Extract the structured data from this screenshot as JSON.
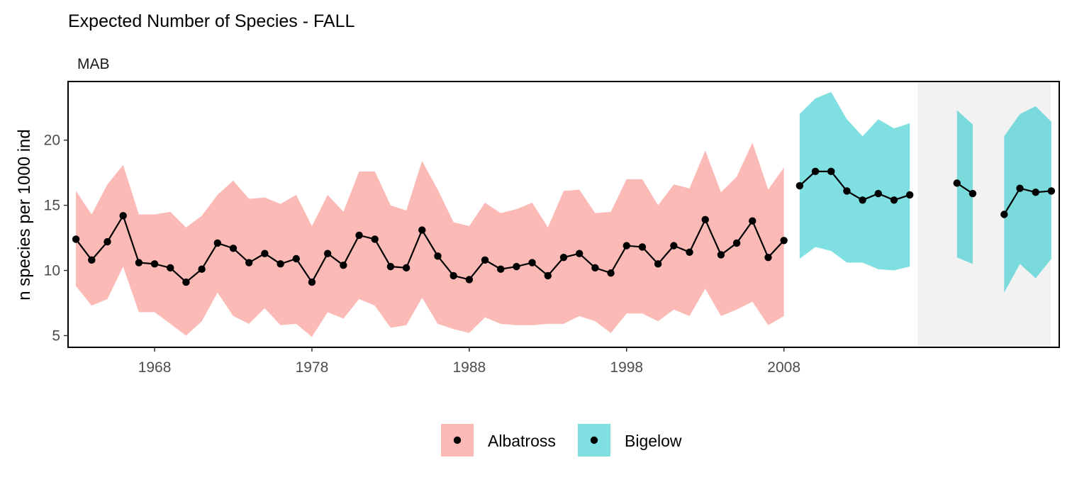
{
  "chart_data": {
    "type": "line",
    "title": "Expected Number of Species - FALL",
    "subtitle": "MAB",
    "xlabel": "",
    "ylabel": "n species per 1000 ind",
    "xlim": [
      1962.5,
      2025.5
    ],
    "ylim": [
      4.1,
      24.5
    ],
    "x_ticks": [
      1968,
      1978,
      1988,
      1998,
      2008
    ],
    "y_ticks": [
      5,
      10,
      15,
      20
    ],
    "grid": false,
    "legend_position": "bottom",
    "shaded_period": [
      2016.5,
      2025.5
    ],
    "shaded_period_color": "#f2f2f2",
    "colors": {
      "Albatross": "#f8766d",
      "Bigelow": "#00bfc4",
      "line": "#000000"
    },
    "series": [
      {
        "name": "Albatross",
        "segments": [
          {
            "x": [
              1963,
              1964,
              1965,
              1966,
              1967,
              1968,
              1969,
              1970,
              1971,
              1972,
              1973,
              1974,
              1975,
              1976,
              1977,
              1978,
              1979,
              1980,
              1981,
              1982,
              1983,
              1984,
              1985,
              1986,
              1987,
              1988,
              1989,
              1990,
              1991,
              1992,
              1993,
              1994,
              1995,
              1996,
              1997,
              1998,
              1999,
              2000,
              2001,
              2002,
              2003,
              2004,
              2005,
              2006,
              2007,
              2008
            ],
            "y": [
              12.4,
              10.8,
              12.2,
              14.2,
              10.6,
              10.5,
              10.2,
              9.1,
              10.1,
              12.1,
              11.7,
              10.6,
              11.3,
              10.5,
              10.9,
              9.1,
              11.3,
              10.4,
              12.7,
              12.4,
              10.3,
              10.2,
              13.1,
              11.1,
              9.6,
              9.3,
              10.8,
              10.1,
              10.3,
              10.6,
              9.6,
              11.0,
              11.3,
              10.2,
              9.8,
              11.9,
              11.8,
              10.5,
              11.9,
              11.4,
              13.9,
              11.2,
              12.1,
              13.8,
              11.0,
              12.3
            ],
            "lower": [
              8.8,
              7.3,
              7.8,
              10.3,
              6.8,
              6.8,
              5.9,
              5.0,
              6.1,
              8.3,
              6.5,
              5.9,
              7.1,
              5.8,
              5.9,
              4.9,
              6.8,
              6.3,
              7.8,
              7.3,
              5.6,
              5.8,
              7.9,
              5.9,
              5.5,
              5.2,
              6.4,
              5.9,
              5.8,
              5.8,
              5.9,
              5.9,
              6.5,
              6.1,
              5.2,
              6.7,
              6.7,
              6.1,
              7.0,
              6.5,
              8.6,
              6.5,
              7.0,
              7.6,
              5.8,
              6.5
            ],
            "upper": [
              16.1,
              14.3,
              16.6,
              18.1,
              14.3,
              14.3,
              14.5,
              13.3,
              14.2,
              15.8,
              16.9,
              15.5,
              15.6,
              15.1,
              15.8,
              13.4,
              15.8,
              14.5,
              17.6,
              17.6,
              15.0,
              14.6,
              18.4,
              16.2,
              13.7,
              13.4,
              15.2,
              14.4,
              14.7,
              15.2,
              13.3,
              16.1,
              16.2,
              14.4,
              14.5,
              17.0,
              17.0,
              15.0,
              16.6,
              16.3,
              19.2,
              16.0,
              17.2,
              19.8,
              16.2,
              17.9
            ]
          }
        ]
      },
      {
        "name": "Bigelow",
        "segments": [
          {
            "x": [
              2009,
              2010,
              2011,
              2012,
              2013,
              2014,
              2015,
              2016
            ],
            "y": [
              16.5,
              17.6,
              17.6,
              16.1,
              15.4,
              15.9,
              15.4,
              15.8
            ],
            "lower": [
              10.9,
              11.8,
              11.5,
              10.6,
              10.6,
              10.1,
              10.0,
              10.3
            ],
            "upper": [
              22.0,
              23.2,
              23.7,
              21.6,
              20.3,
              21.6,
              20.9,
              21.3
            ]
          },
          {
            "x": [
              2019,
              2020
            ],
            "y": [
              16.7,
              15.9
            ],
            "lower": [
              11.0,
              10.5
            ],
            "upper": [
              22.3,
              21.2
            ]
          },
          {
            "x": [
              2022,
              2023,
              2024,
              2025
            ],
            "y": [
              14.3,
              16.3,
              16.0,
              16.1
            ],
            "lower": [
              8.3,
              10.5,
              9.4,
              10.9
            ],
            "upper": [
              20.3,
              22.0,
              22.6,
              21.4
            ]
          }
        ]
      }
    ],
    "legend": [
      {
        "label": "Albatross",
        "color": "#f8766d"
      },
      {
        "label": "Bigelow",
        "color": "#00bfc4"
      }
    ]
  }
}
